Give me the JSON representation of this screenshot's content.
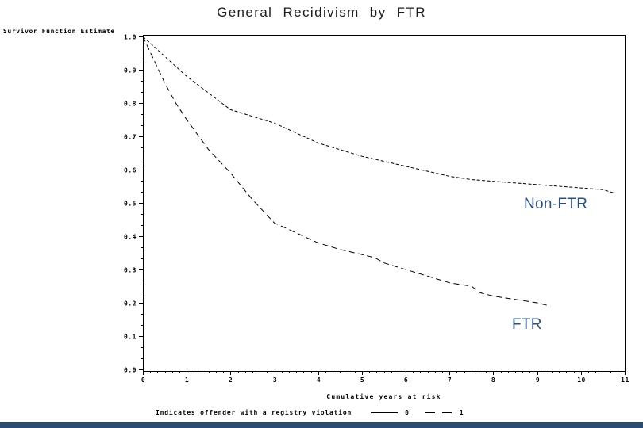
{
  "page": {
    "background": "#ffffff",
    "footer_bar_color": "#2b4c70"
  },
  "chart": {
    "title": "General Recidivism by FTR",
    "y_axis_label": "Survivor Function Estimate",
    "x_axis_label": "Cumulative years at risk",
    "legend": {
      "caption": "Indicates offender with a registry violation",
      "entries": [
        {
          "label": "0",
          "style": "solid"
        },
        {
          "label": "1",
          "style": "dashed"
        }
      ]
    },
    "series_labels": {
      "non_ftr": "Non-FTR",
      "ftr": "FTR",
      "color": "#2e5078"
    },
    "curve_color": "#000000"
  },
  "chart_data": {
    "type": "line",
    "subtype": "kaplan-meier-survival",
    "title": "General Recidivism by FTR",
    "xlabel": "Cumulative years at risk",
    "ylabel": "Survivor Function Estimate",
    "xlim": [
      0,
      11
    ],
    "ylim": [
      0.0,
      1.0
    ],
    "x_ticks": [
      "0",
      "1",
      "2",
      "3",
      "4",
      "5",
      "6",
      "7",
      "8",
      "9",
      "10",
      "11"
    ],
    "y_ticks": [
      "1.0",
      "0.9",
      "0.8",
      "0.7",
      "0.6",
      "0.5",
      "0.4",
      "0.3",
      "0.2",
      "0.1",
      "0.0"
    ],
    "y_tick_values": [
      1.0,
      0.9,
      0.8,
      0.7,
      0.6,
      0.5,
      0.4,
      0.3,
      0.2,
      0.1,
      0.0
    ],
    "x_tick_values": [
      0,
      1,
      2,
      3,
      4,
      5,
      6,
      7,
      8,
      9,
      10,
      11
    ],
    "x_minor_per_major": 5,
    "y_minor_per_major": 2,
    "grid": false,
    "frame": true,
    "legend_position": "bottom",
    "series": [
      {
        "name": "Non-FTR (registry violation = 0)",
        "line_style": "fine-dash",
        "x": [
          0,
          0.25,
          0.5,
          0.75,
          1,
          1.5,
          2,
          2.5,
          3,
          3.5,
          4,
          4.5,
          5,
          5.5,
          6,
          6.5,
          7,
          7.5,
          8,
          8.5,
          9,
          9.5,
          10,
          10.5,
          10.75
        ],
        "y": [
          1.0,
          0.97,
          0.94,
          0.91,
          0.88,
          0.83,
          0.78,
          0.76,
          0.74,
          0.71,
          0.68,
          0.66,
          0.64,
          0.625,
          0.61,
          0.595,
          0.58,
          0.57,
          0.565,
          0.56,
          0.555,
          0.55,
          0.545,
          0.54,
          0.53
        ]
      },
      {
        "name": "FTR (registry violation = 1)",
        "line_style": "long-dash",
        "x": [
          0,
          0.25,
          0.5,
          0.75,
          1,
          1.5,
          2,
          2.5,
          3,
          3.5,
          4,
          4.5,
          5,
          5.3,
          5.5,
          6,
          6.5,
          7,
          7.5,
          7.7,
          8,
          8.5,
          9,
          9.3
        ],
        "y": [
          1.0,
          0.93,
          0.86,
          0.8,
          0.75,
          0.66,
          0.59,
          0.51,
          0.44,
          0.41,
          0.38,
          0.36,
          0.345,
          0.335,
          0.32,
          0.3,
          0.28,
          0.26,
          0.25,
          0.23,
          0.22,
          0.21,
          0.2,
          0.19
        ]
      }
    ],
    "annotations": [
      {
        "text": "Non-FTR",
        "x": 9.4,
        "y": 0.5,
        "color": "#2e5078"
      },
      {
        "text": "FTR",
        "x": 8.9,
        "y": 0.14,
        "color": "#2e5078"
      }
    ]
  }
}
